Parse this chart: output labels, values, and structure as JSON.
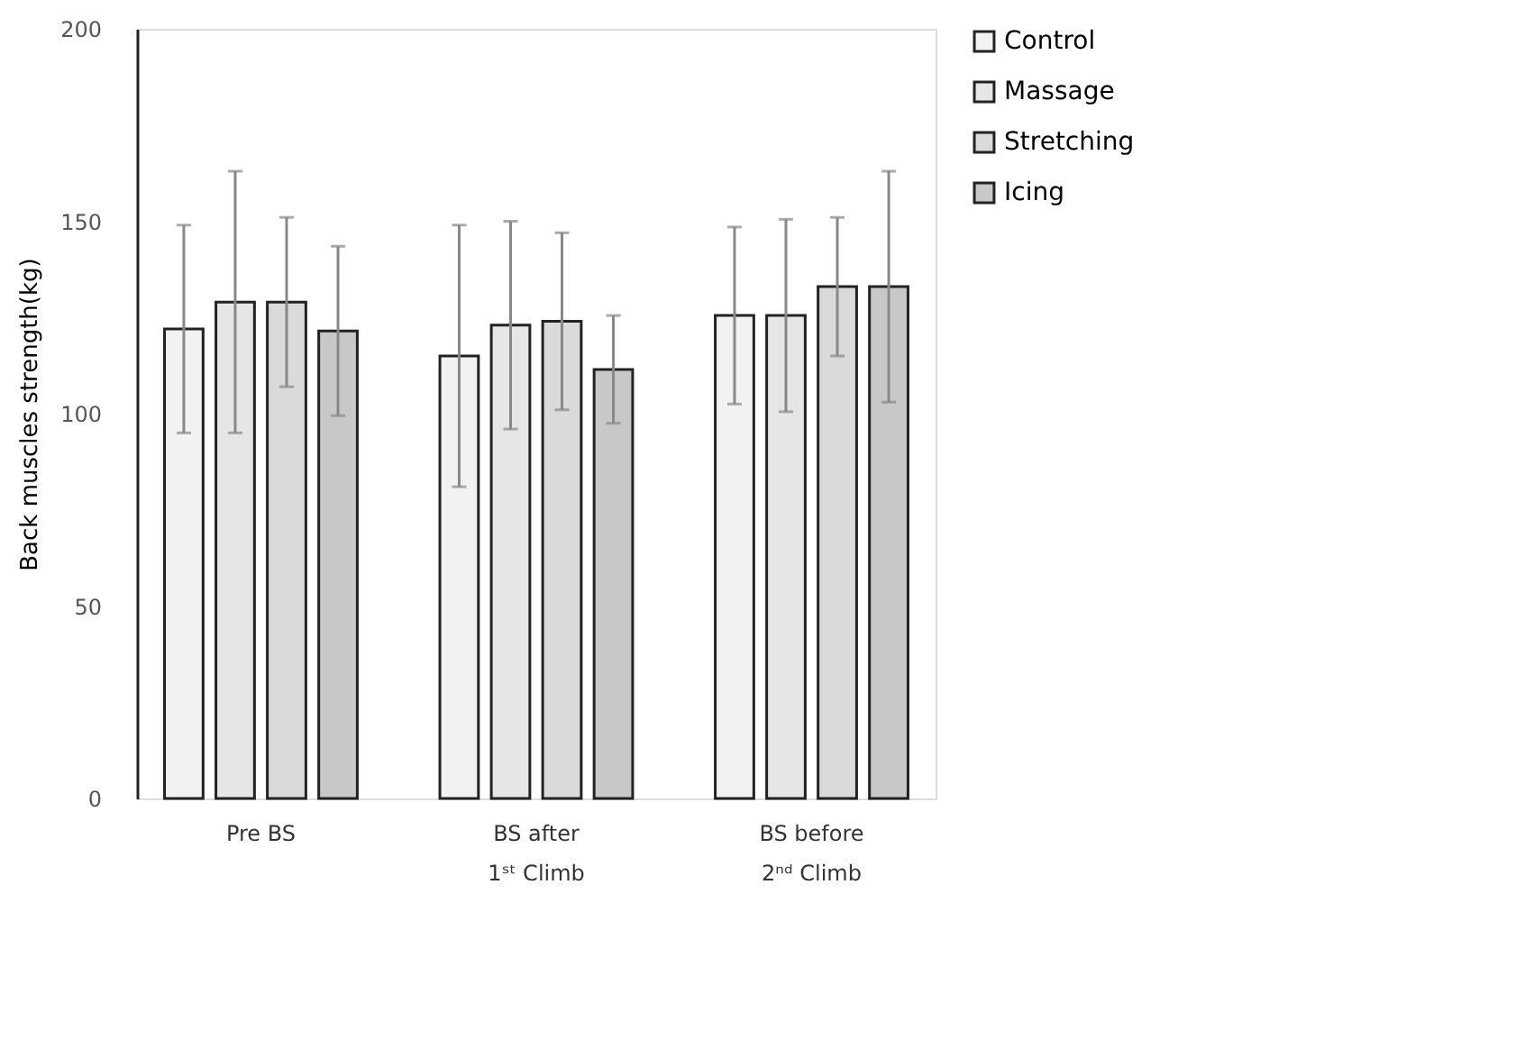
{
  "chart_data": {
    "type": "bar",
    "ylabel": "Back muscles strength(kg)",
    "categories": [
      "Pre BS",
      "BS after\n1ˢᵗ Climb",
      "BS before\n2ⁿᵈ Climb"
    ],
    "series": [
      {
        "name": "Control",
        "color": "#f2f2f2",
        "values": [
          122,
          115,
          125.5
        ],
        "errors": [
          27,
          34,
          23
        ]
      },
      {
        "name": "Massage",
        "color": "#e6e6e6",
        "values": [
          129,
          123,
          125.5
        ],
        "errors": [
          34,
          27,
          25
        ]
      },
      {
        "name": "Stretching",
        "color": "#dadada",
        "values": [
          129,
          124,
          133
        ],
        "errors": [
          22,
          23,
          18
        ]
      },
      {
        "name": "Icing",
        "color": "#c8c8c8",
        "values": [
          121.5,
          111.5,
          133
        ],
        "errors": [
          22,
          14,
          30
        ]
      }
    ],
    "ylim": [
      0,
      200
    ],
    "yticks": [
      0,
      50,
      100,
      150,
      200
    ],
    "grid": false,
    "legend": "right"
  }
}
